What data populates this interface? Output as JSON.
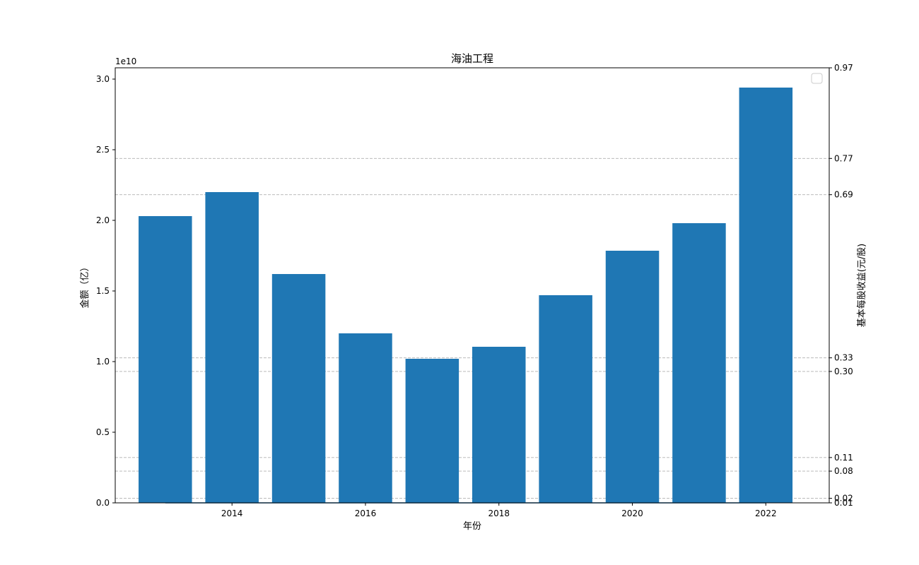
{
  "chart_data": {
    "type": "bar",
    "title": "海油工程",
    "xlabel": "年份",
    "ylabel": "金额（亿）",
    "y2label": "基本每股收益(元/股)",
    "offset_text": "1e10",
    "x": [
      2013,
      2014,
      2015,
      2016,
      2017,
      2018,
      2019,
      2020,
      2021,
      2022
    ],
    "xticks": [
      "2014",
      "2016",
      "2018",
      "2020",
      "2022"
    ],
    "xlim": [
      2012.25,
      2022.95
    ],
    "yticks": [
      "0.0",
      "0.5",
      "1.0",
      "1.5",
      "2.0",
      "2.5",
      "3.0"
    ],
    "ylim": [
      0,
      3.08
    ],
    "y2ticks": [
      "0.01",
      "0.02",
      "0.08",
      "0.11",
      "0.30",
      "0.33",
      "0.69",
      "0.77",
      "0.97"
    ],
    "y2lim": [
      0.01,
      0.97
    ],
    "y2_gridlines": [
      0.02,
      0.08,
      0.11,
      0.3,
      0.33,
      0.69,
      0.77
    ],
    "series": [
      {
        "axis": "left",
        "color": "#1f77b4",
        "values": [
          2.03,
          2.2,
          1.62,
          1.2,
          1.02,
          1.105,
          1.47,
          1.785,
          1.98,
          2.94
        ]
      },
      {
        "axis": "right",
        "style": "line",
        "color": "#1f77b4",
        "values": [
          0.01,
          0.01,
          0.01,
          0.01,
          0.01,
          0.01,
          0.01,
          0.01,
          0.01,
          0.01
        ]
      }
    ],
    "grid": "right-axis horizontal dashed",
    "legend": "top-right (empty)"
  }
}
